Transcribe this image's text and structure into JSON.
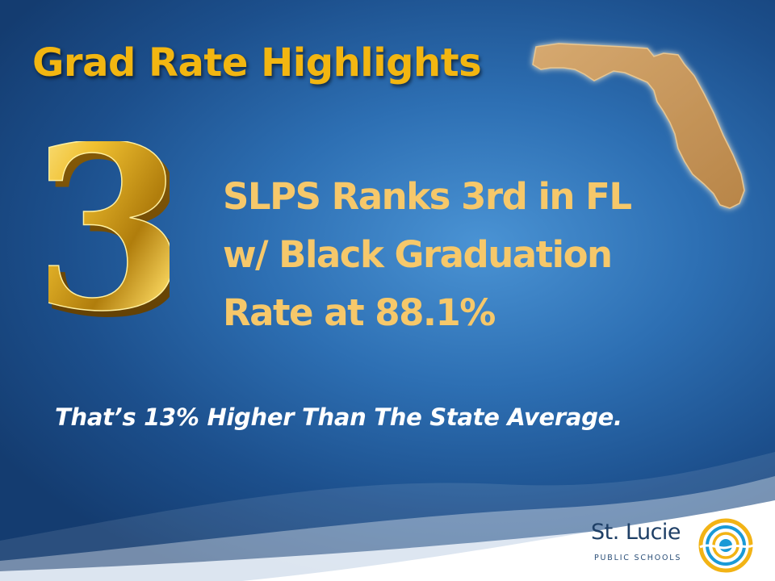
{
  "slide": {
    "title": "Grad Rate Highlights",
    "rank_digit": "3",
    "headline_lines": [
      "SLPS Ranks 3rd in FL",
      "w/ Black Graduation",
      "Rate at 88.1%"
    ],
    "subline": "That’s 13% Higher Than The State Average."
  },
  "logo": {
    "name": "St. Lucie",
    "subtitle": "PUBLIC SCHOOLS",
    "icon": "sun-wave-logo-icon"
  },
  "decor": {
    "florida_icon": "florida-state-map-icon",
    "digit_style": "gold-3d-numeral"
  },
  "colors": {
    "background": "#2d6fb3",
    "title_gold": "#f2b611",
    "headline_gold": "#f6c86a",
    "subline": "#ffffff",
    "florida_fill": "#c99a5e"
  }
}
